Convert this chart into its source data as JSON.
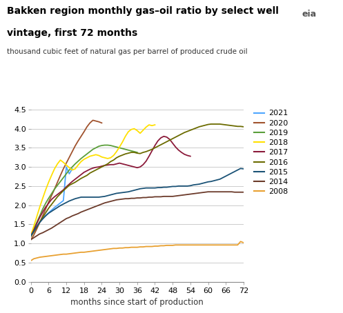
{
  "title": "Bakken region monthly gas–oil ratio by select well\nvintage, first 72 months",
  "subtitle": "thousand cubic feet of natural gas per barrel of produced crude oil",
  "xlabel": "months since start of production",
  "xlim": [
    0,
    72
  ],
  "ylim": [
    0.0,
    4.5
  ],
  "xticks": [
    0,
    6,
    12,
    18,
    24,
    30,
    36,
    42,
    48,
    54,
    60,
    66,
    72
  ],
  "yticks": [
    0.0,
    0.5,
    1.0,
    1.5,
    2.0,
    2.5,
    3.0,
    3.5,
    4.0,
    4.5
  ],
  "series": {
    "2021": {
      "color": "#4da6ff",
      "x": [
        0,
        1,
        2,
        3,
        4,
        5,
        6,
        7,
        8,
        9,
        10,
        11,
        12,
        13,
        14
      ],
      "y": [
        1.2,
        1.32,
        1.44,
        1.56,
        1.65,
        1.73,
        1.8,
        1.87,
        1.94,
        2.0,
        2.06,
        2.12,
        3.0,
        2.82,
        2.95
      ]
    },
    "2020": {
      "color": "#a0522d",
      "x": [
        0,
        1,
        2,
        3,
        4,
        5,
        6,
        7,
        8,
        9,
        10,
        11,
        12,
        13,
        14,
        15,
        16,
        17,
        18,
        19,
        20,
        21,
        22,
        23,
        24
      ],
      "y": [
        1.1,
        1.22,
        1.38,
        1.55,
        1.72,
        1.9,
        2.08,
        2.25,
        2.42,
        2.6,
        2.78,
        2.95,
        3.1,
        3.25,
        3.4,
        3.55,
        3.68,
        3.8,
        3.92,
        4.05,
        4.15,
        4.22,
        4.2,
        4.18,
        4.15
      ]
    },
    "2019": {
      "color": "#5a9e3a",
      "x": [
        0,
        1,
        2,
        3,
        4,
        5,
        6,
        7,
        8,
        9,
        10,
        11,
        12,
        13,
        14,
        15,
        16,
        17,
        18,
        19,
        20,
        21,
        22,
        23,
        24,
        25,
        26,
        27,
        28,
        29,
        30,
        31,
        32,
        33,
        34,
        35,
        36
      ],
      "y": [
        1.22,
        1.38,
        1.55,
        1.72,
        1.9,
        2.05,
        2.18,
        2.3,
        2.42,
        2.52,
        2.62,
        2.72,
        2.82,
        2.92,
        3.0,
        3.08,
        3.15,
        3.22,
        3.28,
        3.34,
        3.4,
        3.46,
        3.5,
        3.54,
        3.56,
        3.57,
        3.57,
        3.56,
        3.54,
        3.52,
        3.5,
        3.48,
        3.46,
        3.44,
        3.42,
        3.4,
        3.38
      ]
    },
    "2018": {
      "color": "#ffe000",
      "x": [
        0,
        1,
        2,
        3,
        4,
        5,
        6,
        7,
        8,
        9,
        10,
        11,
        12,
        13,
        14,
        15,
        16,
        17,
        18,
        19,
        20,
        21,
        22,
        23,
        24,
        25,
        26,
        27,
        28,
        29,
        30,
        31,
        32,
        33,
        34,
        35,
        36,
        37,
        38,
        39,
        40,
        41,
        42
      ],
      "y": [
        1.22,
        1.45,
        1.7,
        1.95,
        2.18,
        2.4,
        2.6,
        2.78,
        2.95,
        3.08,
        3.18,
        3.12,
        3.05,
        2.98,
        2.92,
        2.95,
        3.05,
        3.14,
        3.2,
        3.24,
        3.28,
        3.3,
        3.32,
        3.3,
        3.26,
        3.24,
        3.22,
        3.24,
        3.3,
        3.4,
        3.52,
        3.65,
        3.8,
        3.92,
        3.98,
        4.0,
        3.95,
        3.88,
        3.96,
        4.04,
        4.1,
        4.08,
        4.1
      ]
    },
    "2017": {
      "color": "#8b1a3a",
      "x": [
        0,
        1,
        2,
        3,
        4,
        5,
        6,
        7,
        8,
        9,
        10,
        11,
        12,
        13,
        14,
        15,
        16,
        17,
        18,
        19,
        20,
        21,
        22,
        23,
        24,
        25,
        26,
        27,
        28,
        29,
        30,
        31,
        32,
        33,
        34,
        35,
        36,
        37,
        38,
        39,
        40,
        41,
        42,
        43,
        44,
        45,
        46,
        47,
        48,
        49,
        50,
        51,
        52,
        53,
        54
      ],
      "y": [
        1.2,
        1.35,
        1.52,
        1.68,
        1.82,
        1.95,
        2.05,
        2.15,
        2.22,
        2.28,
        2.34,
        2.4,
        2.48,
        2.55,
        2.62,
        2.68,
        2.74,
        2.8,
        2.86,
        2.9,
        2.94,
        2.97,
        2.99,
        3.0,
        3.02,
        3.04,
        3.05,
        3.06,
        3.06,
        3.08,
        3.1,
        3.08,
        3.06,
        3.04,
        3.02,
        3.0,
        2.98,
        3.0,
        3.06,
        3.15,
        3.28,
        3.42,
        3.56,
        3.68,
        3.76,
        3.8,
        3.78,
        3.72,
        3.62,
        3.52,
        3.44,
        3.38,
        3.33,
        3.3,
        3.28
      ]
    },
    "2016": {
      "color": "#6b6b00",
      "x": [
        0,
        1,
        2,
        3,
        4,
        5,
        6,
        7,
        8,
        9,
        10,
        11,
        12,
        13,
        14,
        15,
        16,
        17,
        18,
        19,
        20,
        21,
        22,
        23,
        24,
        25,
        26,
        27,
        28,
        29,
        30,
        31,
        32,
        33,
        34,
        35,
        36,
        37,
        38,
        39,
        40,
        41,
        42,
        43,
        44,
        45,
        46,
        47,
        48,
        49,
        50,
        51,
        52,
        53,
        54,
        55,
        56,
        57,
        58,
        59,
        60,
        61,
        62,
        63,
        64,
        65,
        66,
        67,
        68,
        69,
        70,
        71,
        72
      ],
      "y": [
        1.18,
        1.3,
        1.43,
        1.56,
        1.68,
        1.8,
        1.92,
        2.02,
        2.12,
        2.22,
        2.3,
        2.38,
        2.45,
        2.52,
        2.56,
        2.6,
        2.65,
        2.7,
        2.74,
        2.78,
        2.84,
        2.88,
        2.92,
        2.96,
        3.0,
        3.04,
        3.08,
        3.14,
        3.18,
        3.24,
        3.28,
        3.31,
        3.34,
        3.36,
        3.38,
        3.38,
        3.36,
        3.35,
        3.38,
        3.4,
        3.43,
        3.46,
        3.5,
        3.54,
        3.58,
        3.62,
        3.66,
        3.7,
        3.74,
        3.78,
        3.82,
        3.86,
        3.9,
        3.93,
        3.96,
        3.99,
        4.02,
        4.05,
        4.07,
        4.09,
        4.11,
        4.12,
        4.12,
        4.12,
        4.12,
        4.11,
        4.1,
        4.09,
        4.08,
        4.07,
        4.06,
        4.06,
        4.05
      ]
    },
    "2015": {
      "color": "#1a5276",
      "x": [
        0,
        1,
        2,
        3,
        4,
        5,
        6,
        7,
        8,
        9,
        10,
        11,
        12,
        13,
        14,
        15,
        16,
        17,
        18,
        19,
        20,
        21,
        22,
        23,
        24,
        25,
        26,
        27,
        28,
        29,
        30,
        31,
        32,
        33,
        34,
        35,
        36,
        37,
        38,
        39,
        40,
        41,
        42,
        43,
        44,
        45,
        46,
        47,
        48,
        49,
        50,
        51,
        52,
        53,
        54,
        55,
        56,
        57,
        58,
        59,
        60,
        61,
        62,
        63,
        64,
        65,
        66,
        67,
        68,
        69,
        70,
        71,
        72
      ],
      "y": [
        1.2,
        1.32,
        1.44,
        1.55,
        1.64,
        1.72,
        1.79,
        1.84,
        1.89,
        1.94,
        1.99,
        2.03,
        2.07,
        2.11,
        2.14,
        2.17,
        2.19,
        2.21,
        2.21,
        2.21,
        2.21,
        2.21,
        2.21,
        2.21,
        2.22,
        2.23,
        2.25,
        2.27,
        2.29,
        2.31,
        2.32,
        2.33,
        2.34,
        2.35,
        2.37,
        2.39,
        2.41,
        2.43,
        2.44,
        2.45,
        2.45,
        2.45,
        2.45,
        2.46,
        2.46,
        2.47,
        2.47,
        2.48,
        2.49,
        2.49,
        2.5,
        2.5,
        2.5,
        2.5,
        2.51,
        2.53,
        2.54,
        2.55,
        2.57,
        2.59,
        2.61,
        2.62,
        2.64,
        2.66,
        2.68,
        2.72,
        2.76,
        2.8,
        2.84,
        2.88,
        2.92,
        2.96,
        2.95
      ]
    },
    "2014": {
      "color": "#6b3a2a",
      "x": [
        0,
        1,
        2,
        3,
        4,
        5,
        6,
        7,
        8,
        9,
        10,
        11,
        12,
        13,
        14,
        15,
        16,
        17,
        18,
        19,
        20,
        21,
        22,
        23,
        24,
        25,
        26,
        27,
        28,
        29,
        30,
        31,
        32,
        33,
        34,
        35,
        36,
        37,
        38,
        39,
        40,
        41,
        42,
        43,
        44,
        45,
        46,
        47,
        48,
        49,
        50,
        51,
        52,
        53,
        54,
        55,
        56,
        57,
        58,
        59,
        60,
        61,
        62,
        63,
        64,
        65,
        66,
        67,
        68,
        69,
        70,
        71,
        72
      ],
      "y": [
        1.1,
        1.15,
        1.2,
        1.25,
        1.28,
        1.32,
        1.36,
        1.4,
        1.45,
        1.5,
        1.55,
        1.6,
        1.65,
        1.68,
        1.72,
        1.75,
        1.78,
        1.82,
        1.85,
        1.88,
        1.91,
        1.94,
        1.97,
        2.0,
        2.03,
        2.06,
        2.08,
        2.1,
        2.12,
        2.14,
        2.15,
        2.16,
        2.17,
        2.17,
        2.18,
        2.18,
        2.19,
        2.19,
        2.2,
        2.2,
        2.21,
        2.21,
        2.22,
        2.22,
        2.22,
        2.23,
        2.23,
        2.23,
        2.23,
        2.24,
        2.25,
        2.26,
        2.27,
        2.28,
        2.29,
        2.3,
        2.31,
        2.32,
        2.33,
        2.34,
        2.35,
        2.35,
        2.35,
        2.35,
        2.35,
        2.35,
        2.35,
        2.35,
        2.35,
        2.34,
        2.34,
        2.34,
        2.34
      ]
    },
    "2008": {
      "color": "#e8a030",
      "x": [
        0,
        1,
        2,
        3,
        4,
        5,
        6,
        7,
        8,
        9,
        10,
        11,
        12,
        13,
        14,
        15,
        16,
        17,
        18,
        19,
        20,
        21,
        22,
        23,
        24,
        25,
        26,
        27,
        28,
        29,
        30,
        31,
        32,
        33,
        34,
        35,
        36,
        37,
        38,
        39,
        40,
        41,
        42,
        43,
        44,
        45,
        46,
        47,
        48,
        49,
        50,
        51,
        52,
        53,
        54,
        55,
        56,
        57,
        58,
        59,
        60,
        61,
        62,
        63,
        64,
        65,
        66,
        67,
        68,
        69,
        70,
        71,
        72
      ],
      "y": [
        0.55,
        0.6,
        0.62,
        0.64,
        0.65,
        0.66,
        0.67,
        0.68,
        0.69,
        0.7,
        0.71,
        0.72,
        0.72,
        0.73,
        0.74,
        0.75,
        0.76,
        0.77,
        0.77,
        0.78,
        0.79,
        0.8,
        0.81,
        0.82,
        0.83,
        0.84,
        0.85,
        0.86,
        0.87,
        0.87,
        0.88,
        0.88,
        0.89,
        0.89,
        0.9,
        0.9,
        0.9,
        0.91,
        0.91,
        0.92,
        0.92,
        0.92,
        0.93,
        0.93,
        0.94,
        0.94,
        0.95,
        0.95,
        0.95,
        0.96,
        0.96,
        0.96,
        0.96,
        0.96,
        0.96,
        0.96,
        0.96,
        0.96,
        0.96,
        0.96,
        0.96,
        0.96,
        0.96,
        0.96,
        0.96,
        0.96,
        0.96,
        0.96,
        0.96,
        0.96,
        0.96,
        1.05,
        1.02
      ]
    }
  },
  "legend_order": [
    "2021",
    "2020",
    "2019",
    "2018",
    "2017",
    "2016",
    "2015",
    "2014",
    "2008"
  ],
  "background_color": "#FFFFFF",
  "grid_color": "#CCCCCC"
}
